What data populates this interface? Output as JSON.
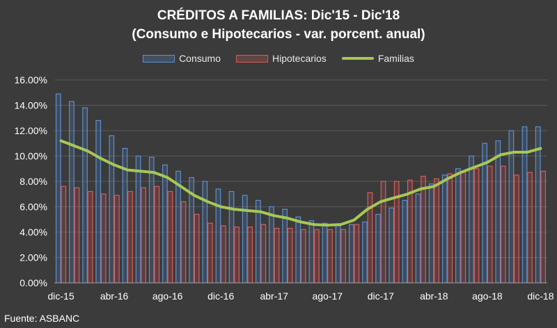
{
  "chart_data": {
    "type": "bar",
    "title": "CRÉDITOS A FAMILIAS: Dic'15 - Dic'18",
    "subtitle": "(Consumo e Hipotecarios -  var. porcent. anual)",
    "x_tick_labels": [
      "dic-15",
      "abr-16",
      "ago-16",
      "dic-16",
      "abr-17",
      "ago-17",
      "dic-17",
      "abr-18",
      "ago-18",
      "dic-18"
    ],
    "y_tick_labels": [
      "0.00%",
      "2.00%",
      "4.00%",
      "6.00%",
      "8.00%",
      "10.00%",
      "12.00%",
      "14.00%",
      "16.00%"
    ],
    "ylim": [
      0,
      16
    ],
    "grid": true,
    "legend_position": "top-center",
    "categories": [
      "dic-15",
      "ene-16",
      "feb-16",
      "mar-16",
      "abr-16",
      "may-16",
      "jun-16",
      "jul-16",
      "ago-16",
      "sep-16",
      "oct-16",
      "nov-16",
      "dic-16",
      "ene-17",
      "feb-17",
      "mar-17",
      "abr-17",
      "may-17",
      "jun-17",
      "jul-17",
      "ago-17",
      "sep-17",
      "oct-17",
      "nov-17",
      "dic-17",
      "ene-18",
      "feb-18",
      "mar-18",
      "abr-18",
      "may-18",
      "jun-18",
      "jul-18",
      "ago-18",
      "sep-18",
      "oct-18",
      "nov-18",
      "dic-18"
    ],
    "series": [
      {
        "name": "Consumo",
        "type": "bar",
        "color": "#5b8fd4",
        "values": [
          14.9,
          14.3,
          13.8,
          12.8,
          11.6,
          10.6,
          10.0,
          9.9,
          9.3,
          8.8,
          8.3,
          8.0,
          7.4,
          7.2,
          6.9,
          6.5,
          6.0,
          5.8,
          5.2,
          4.9,
          4.7,
          4.5,
          4.6,
          4.8,
          5.4,
          5.9,
          6.5,
          7.0,
          7.8,
          8.5,
          9.0,
          10.0,
          11.0,
          11.2,
          12.0,
          12.3,
          12.3
        ]
      },
      {
        "name": "Hipotecarios",
        "type": "bar",
        "color": "#e05a5a",
        "values": [
          7.6,
          7.5,
          7.2,
          7.0,
          6.9,
          7.2,
          7.5,
          7.6,
          7.2,
          6.4,
          5.4,
          4.7,
          4.5,
          4.4,
          4.4,
          4.6,
          4.3,
          4.3,
          4.2,
          4.2,
          4.2,
          4.2,
          4.6,
          7.1,
          8.0,
          8.0,
          8.1,
          8.4,
          8.2,
          8.6,
          8.7,
          9.0,
          9.2,
          9.2,
          8.5,
          8.7,
          8.8
        ]
      },
      {
        "name": "Familias",
        "type": "line",
        "color": "#a6c855",
        "values": [
          11.2,
          10.8,
          10.4,
          9.8,
          9.3,
          8.9,
          8.8,
          8.7,
          8.3,
          7.6,
          6.9,
          6.4,
          6.0,
          5.8,
          5.7,
          5.6,
          5.3,
          5.1,
          4.8,
          4.6,
          4.55,
          4.6,
          4.95,
          5.8,
          6.4,
          6.7,
          7.0,
          7.4,
          7.6,
          8.2,
          8.7,
          9.1,
          9.5,
          10.1,
          10.3,
          10.3,
          10.6
        ]
      }
    ]
  },
  "source": "Fuente: ASBANC"
}
